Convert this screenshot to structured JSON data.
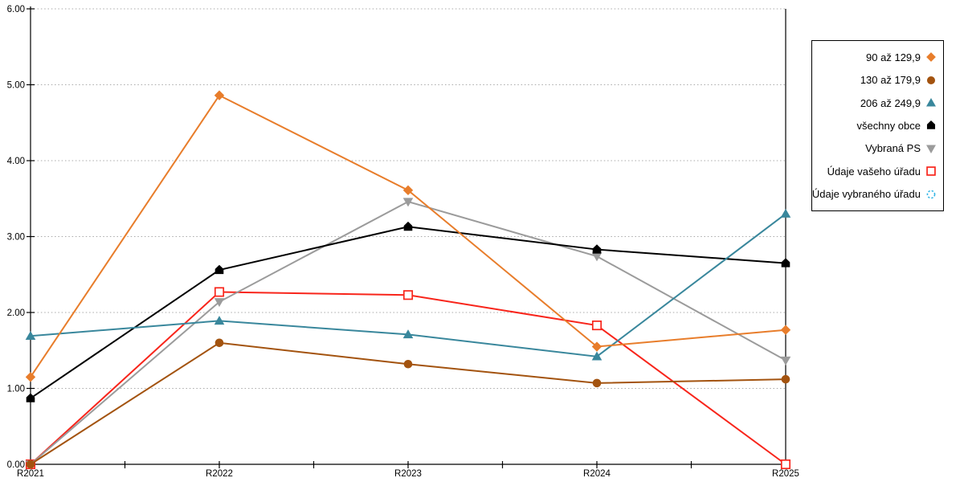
{
  "page": {
    "background_color": "#FFFFFF",
    "axis_color": "#000000",
    "grid_color": "#AAAAAA"
  },
  "chart_data": {
    "type": "line",
    "title": "",
    "xlabel": "",
    "ylabel": "",
    "categories": [
      "R2021",
      "R2022",
      "R2023",
      "R2024",
      "R2025"
    ],
    "y_tick_labels": [
      "0.00",
      "1.00",
      "2.00",
      "3.00",
      "4.00",
      "5.00",
      "6.00"
    ],
    "ylim": [
      0,
      6
    ],
    "y_tick_step": 1,
    "grid": "horizontal-dotted",
    "legend_position": "right",
    "series": [
      {
        "name": "90 až 129,9",
        "marker": "diamond",
        "marker_fill": "solid",
        "color": "#E87D2B",
        "values": [
          1.15,
          4.86,
          3.61,
          1.55,
          1.77
        ]
      },
      {
        "name": "130 až 179,9",
        "marker": "circle",
        "marker_fill": "solid",
        "color": "#A3530F",
        "values": [
          0,
          1.6,
          1.32,
          1.07,
          1.12
        ]
      },
      {
        "name": "206 až 249,9",
        "marker": "triangle-up",
        "marker_fill": "solid",
        "color": "#39879C",
        "values": [
          1.69,
          1.89,
          1.71,
          1.42,
          3.3
        ]
      },
      {
        "name": "všechny obce",
        "marker": "pentagon",
        "marker_fill": "solid",
        "color": "#000000",
        "values": [
          0.87,
          2.56,
          3.13,
          2.83,
          2.65
        ]
      },
      {
        "name": "Vybraná PS",
        "marker": "triangle-down",
        "marker_fill": "solid",
        "color": "#9B9B9B",
        "values": [
          0,
          2.14,
          3.46,
          2.74,
          1.37
        ]
      },
      {
        "name": "Údaje vašeho úřadu",
        "marker": "square-open",
        "marker_fill": "open",
        "color": "#F8251B",
        "values": [
          0,
          2.27,
          2.23,
          1.83,
          0
        ]
      },
      {
        "name": "Údaje vybraného úřadu",
        "marker": "circle-open-dashed",
        "marker_fill": "open",
        "color": "#33B5E5",
        "values": []
      }
    ]
  }
}
